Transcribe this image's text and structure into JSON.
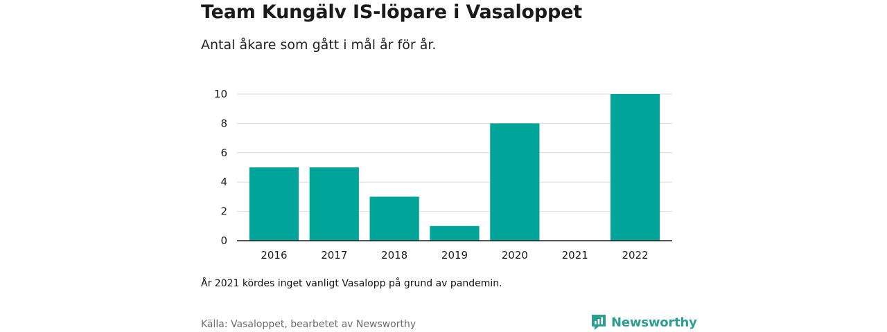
{
  "header": {
    "title": "Team Kungälv IS-löpare i Vasaloppet",
    "subtitle": "Antal åkare som gått i mål år för år."
  },
  "footer": {
    "note": "År 2021 kördes inget vanligt Vasalopp på grund av pandemin.",
    "source": "Källa: Vasaloppet, bearbetet av Newsworthy",
    "brand": "Newsworthy",
    "brand_icon": "newsworthy-logo-icon"
  },
  "colors": {
    "bar": "#00a499",
    "grid": "#d9d9d9",
    "axis": "#1a1a1a",
    "brand": "#2b9d91"
  },
  "chart_data": {
    "type": "bar",
    "title": "Team Kungälv IS-löpare i Vasaloppet",
    "subtitle": "Antal åkare som gått i mål år för år.",
    "xlabel": "",
    "ylabel": "",
    "categories": [
      "2016",
      "2017",
      "2018",
      "2019",
      "2020",
      "2021",
      "2022"
    ],
    "values": [
      5,
      5,
      3,
      1,
      8,
      0,
      10
    ],
    "ylim": [
      0,
      10
    ],
    "yticks": [
      0,
      2,
      4,
      6,
      8,
      10
    ],
    "grid": true,
    "legend": "none"
  }
}
